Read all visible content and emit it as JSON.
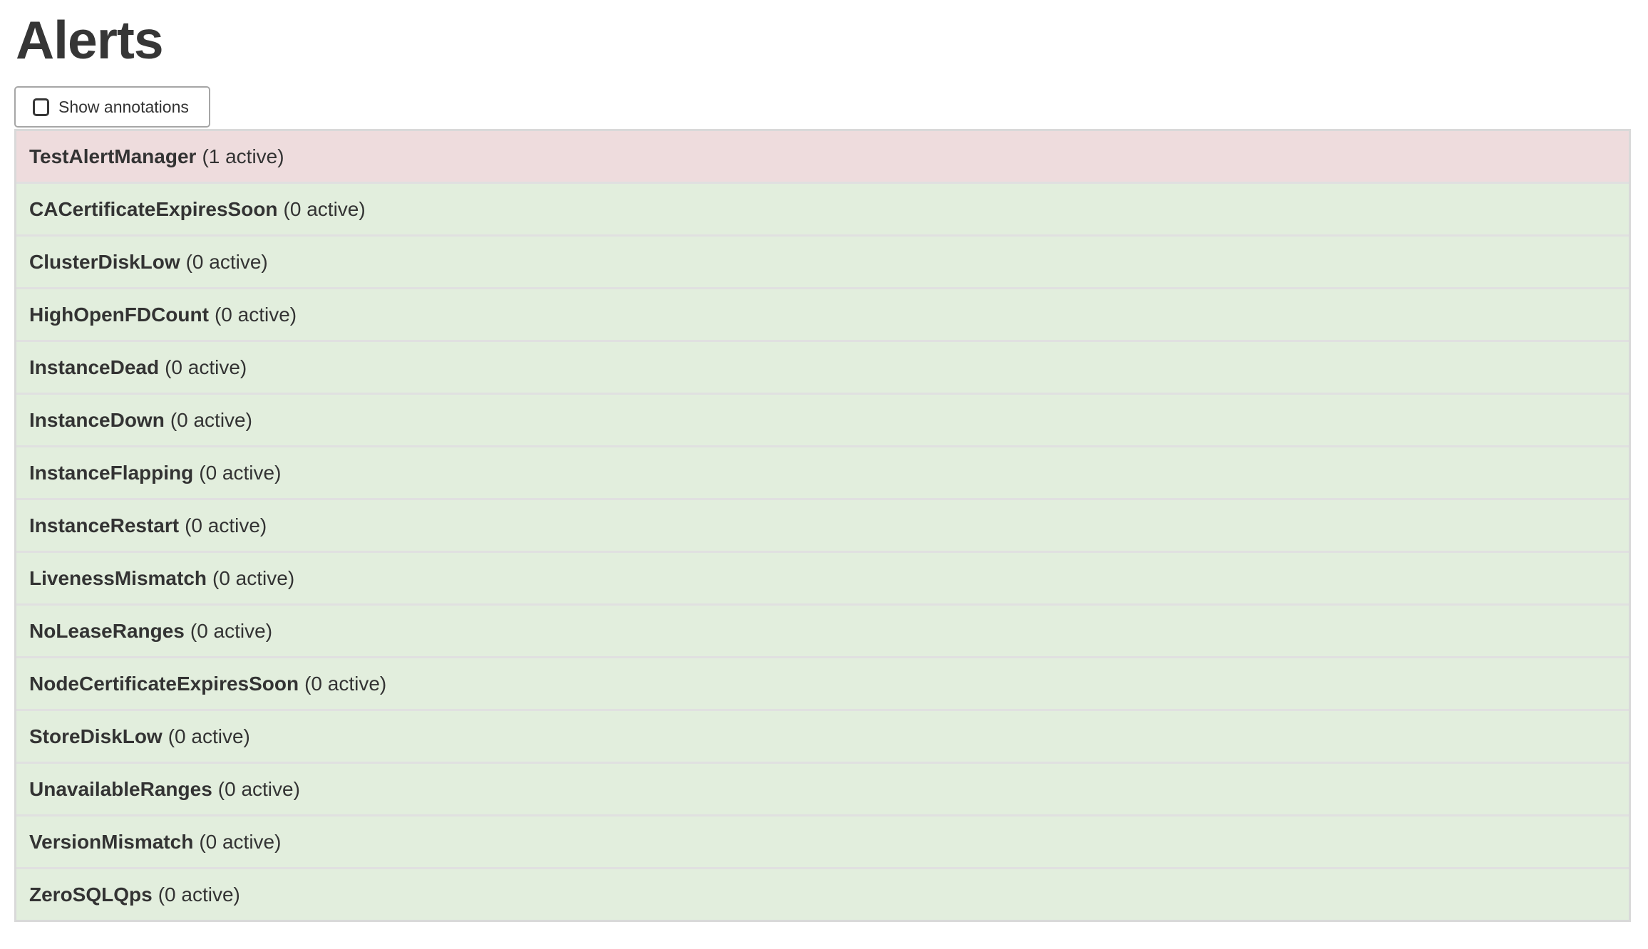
{
  "page": {
    "title": "Alerts"
  },
  "controls": {
    "show_annotations": {
      "label": "Show annotations",
      "checked": false
    }
  },
  "colors": {
    "active_row_bg": "#eedcdd",
    "inactive_row_bg": "#e2eedd",
    "row_separator": "#e0e0e0",
    "list_border": "#d9d9d9",
    "text": "#333333"
  },
  "alerts": [
    {
      "name": "TestAlertManager",
      "active": 1,
      "count_label": "(1 active)"
    },
    {
      "name": "CACertificateExpiresSoon",
      "active": 0,
      "count_label": "(0 active)"
    },
    {
      "name": "ClusterDiskLow",
      "active": 0,
      "count_label": "(0 active)"
    },
    {
      "name": "HighOpenFDCount",
      "active": 0,
      "count_label": "(0 active)"
    },
    {
      "name": "InstanceDead",
      "active": 0,
      "count_label": "(0 active)"
    },
    {
      "name": "InstanceDown",
      "active": 0,
      "count_label": "(0 active)"
    },
    {
      "name": "InstanceFlapping",
      "active": 0,
      "count_label": "(0 active)"
    },
    {
      "name": "InstanceRestart",
      "active": 0,
      "count_label": "(0 active)"
    },
    {
      "name": "LivenessMismatch",
      "active": 0,
      "count_label": "(0 active)"
    },
    {
      "name": "NoLeaseRanges",
      "active": 0,
      "count_label": "(0 active)"
    },
    {
      "name": "NodeCertificateExpiresSoon",
      "active": 0,
      "count_label": "(0 active)"
    },
    {
      "name": "StoreDiskLow",
      "active": 0,
      "count_label": "(0 active)"
    },
    {
      "name": "UnavailableRanges",
      "active": 0,
      "count_label": "(0 active)"
    },
    {
      "name": "VersionMismatch",
      "active": 0,
      "count_label": "(0 active)"
    },
    {
      "name": "ZeroSQLQps",
      "active": 0,
      "count_label": "(0 active)"
    }
  ]
}
